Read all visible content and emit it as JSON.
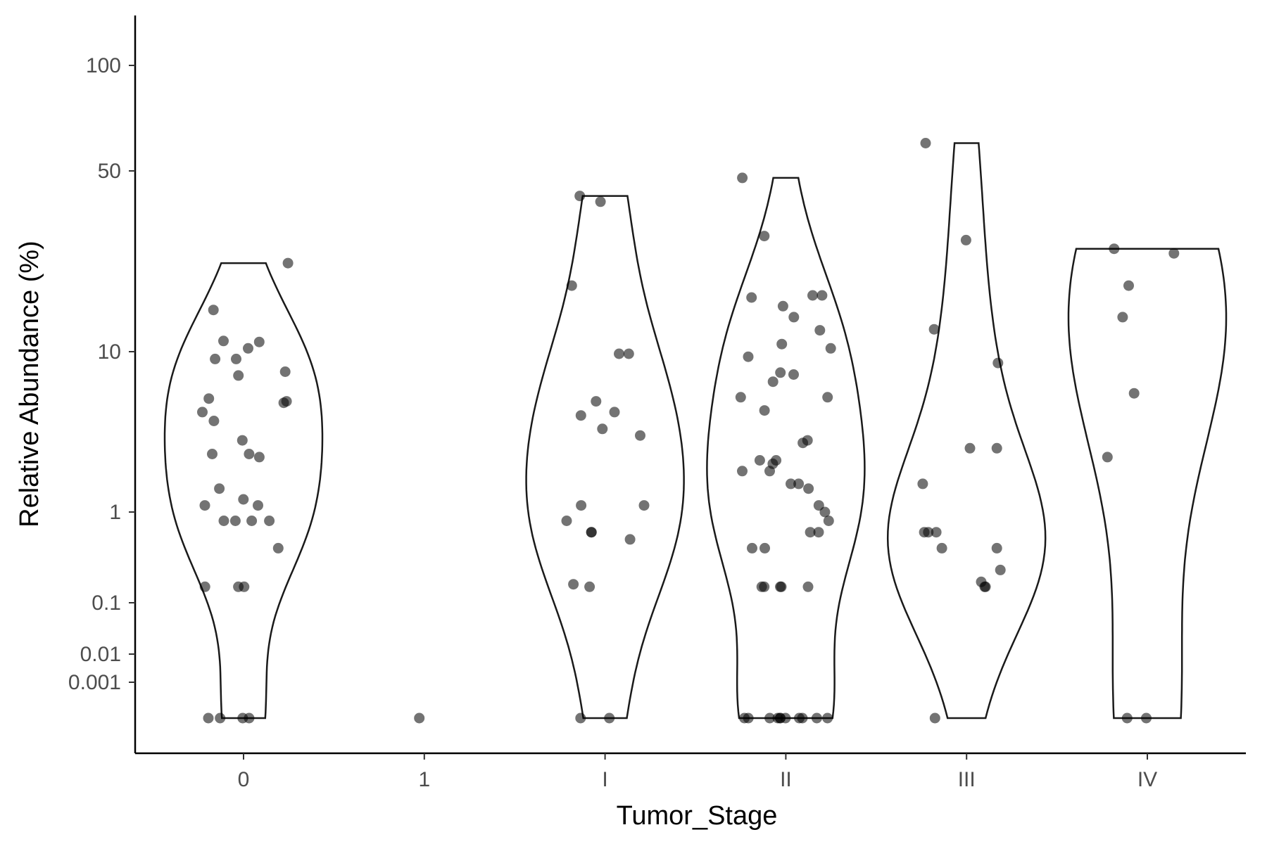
{
  "chart_data": {
    "type": "violin",
    "xlabel": "Tumor_Stage",
    "ylabel": "Relative Abundance (%)",
    "scale": "pseudo-log (zero floor drawn at bottom)",
    "y_ticks": [
      "100",
      "50",
      "10",
      "1",
      "0.1",
      "0.01",
      "0.001"
    ],
    "y_tick_values": [
      100,
      50,
      10,
      1,
      0.1,
      0.01,
      0.001
    ],
    "categories": [
      "0",
      "1",
      "I",
      "II",
      "III",
      "IV"
    ],
    "point_color": "#000000",
    "violin_color": "#1a1a1a",
    "groups": [
      {
        "category": "0",
        "max": 22,
        "points": [
          0,
          0,
          0,
          0,
          0.15,
          0.15,
          0.15,
          0.4,
          0.8,
          0.8,
          0.8,
          0.8,
          1.1,
          1.1,
          1.2,
          1.4,
          2.2,
          2.3,
          2.3,
          2.8,
          3.7,
          4.2,
          4.8,
          4.9,
          5.1,
          7.1,
          7.5,
          9.0,
          9.0,
          10.3,
          10.9,
          11.0,
          14.5,
          22
        ]
      },
      {
        "category": "1",
        "max": 0,
        "points": [
          0
        ]
      },
      {
        "category": "I",
        "max": 40,
        "points": [
          0,
          0,
          0.15,
          0.16,
          0.5,
          0.6,
          0.6,
          0.8,
          1.1,
          1.1,
          3.0,
          3.3,
          4.0,
          4.2,
          4.9,
          9.7,
          9.7,
          18,
          40,
          38
        ]
      },
      {
        "category": "II",
        "max": 47,
        "points": [
          0,
          0,
          0,
          0,
          0,
          0,
          0,
          0,
          0,
          0,
          0,
          0.15,
          0.15,
          0.15,
          0.15,
          0.15,
          0.4,
          0.4,
          0.6,
          0.6,
          0.8,
          1.0,
          1.1,
          1.4,
          1.5,
          1.5,
          1.8,
          1.8,
          2.0,
          2.1,
          2.1,
          2.7,
          2.8,
          4.3,
          5.2,
          5.2,
          6.5,
          7.2,
          7.4,
          9.3,
          10.3,
          10.7,
          12.1,
          13.6,
          15.0,
          16.2,
          16.5,
          16.5,
          28,
          47
        ]
      },
      {
        "category": "III",
        "max": 60,
        "points": [
          0,
          0.15,
          0.15,
          0.17,
          0.23,
          0.4,
          0.4,
          0.6,
          0.6,
          0.6,
          1.5,
          2.5,
          2.5,
          8.5,
          12.2,
          27,
          60
        ]
      },
      {
        "category": "IV",
        "max": 25,
        "points": [
          0,
          0,
          2.2,
          5.5,
          13.6,
          18,
          24,
          25
        ]
      }
    ]
  }
}
